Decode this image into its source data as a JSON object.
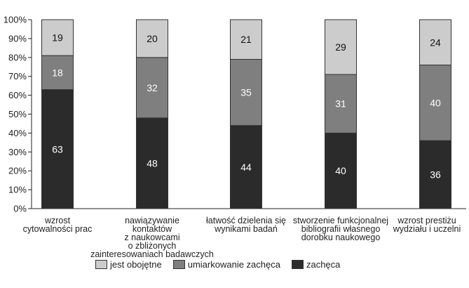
{
  "chart_data": {
    "type": "bar",
    "stacked": true,
    "categories": [
      [
        "wzrost",
        "cytowalności prac"
      ],
      [
        "nawiązywanie",
        "kontaktów",
        "z naukowcami",
        "o zbliżonych",
        "zainteresowaniach badawczych"
      ],
      [
        "łatwość dzielenia się",
        "wynikami badań"
      ],
      [
        "stworzenie funkcjonalnej",
        "bibliografii własnego",
        "dorobku naukowego"
      ],
      [
        "wzrost prestiżu",
        "wydziału i uczelni"
      ]
    ],
    "series": [
      {
        "name": "zachęca",
        "color": "#2b2b2b",
        "text_color": "#ffffff",
        "values": [
          63,
          48,
          44,
          40,
          36
        ]
      },
      {
        "name": "umiarkowanie zachęca",
        "color": "#7f7f7f",
        "text_color": "#ffffff",
        "values": [
          18,
          32,
          35,
          31,
          40
        ]
      },
      {
        "name": "jest obojętne",
        "color": "#cccccc",
        "text_color": "#111111",
        "values": [
          19,
          20,
          21,
          29,
          24
        ]
      }
    ],
    "y_ticks": [
      "0%",
      "10%",
      "20%",
      "30%",
      "40%",
      "50%",
      "60%",
      "70%",
      "80%",
      "90%",
      "100%"
    ],
    "ylim": [
      0,
      100
    ],
    "grid": false,
    "legend_position": "bottom"
  },
  "legend": {
    "items": [
      {
        "label": "jest obojętne",
        "color": "#cccccc"
      },
      {
        "label": "umiarkowanie zachęca",
        "color": "#7f7f7f"
      },
      {
        "label": "zachęca",
        "color": "#2b2b2b"
      }
    ]
  }
}
